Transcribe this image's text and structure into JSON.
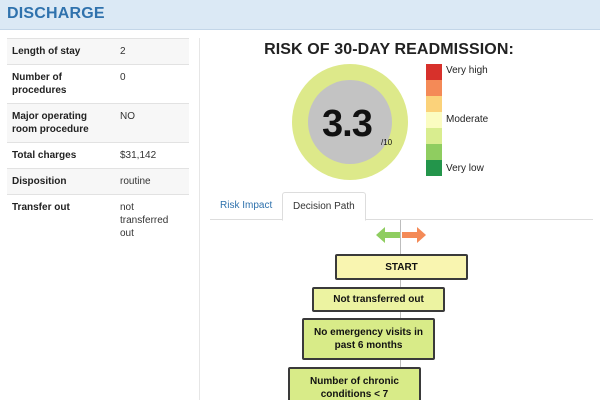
{
  "header": {
    "title": "DISCHARGE"
  },
  "stats": [
    {
      "key": "Length of stay",
      "value": "2"
    },
    {
      "key": "Number of procedures",
      "value": "0"
    },
    {
      "key": "Major operating room procedure",
      "value": "NO"
    },
    {
      "key": "Total charges",
      "value": "$31,142"
    },
    {
      "key": "Disposition",
      "value": "routine"
    },
    {
      "key": "Transfer out",
      "value": "not transferred out"
    }
  ],
  "risk": {
    "title": "RISK OF 30-DAY READMISSION:",
    "score": "3.3",
    "score_suffix": "/10",
    "gauge_ring_color": "#dde98a",
    "gauge_center_color": "#c3c3c3"
  },
  "legend": {
    "swatches": [
      "#d7312b",
      "#f48a57",
      "#fbd27a",
      "#fbfcc1",
      "#d9ed8f",
      "#8fcd60",
      "#23954b"
    ],
    "labels": {
      "high": "Very high",
      "moderate": "Moderate",
      "low": "Very low"
    }
  },
  "tabs": [
    {
      "label": "Risk Impact",
      "active": false
    },
    {
      "label": "Decision Path",
      "active": true
    }
  ],
  "decision_path": {
    "arrow_left_color": "#8fcd60",
    "arrow_right_color": "#f48a57",
    "nodes": [
      "START",
      "Not transferred out",
      "No emergency visits in past 6 months",
      "Number of chronic conditions < 7"
    ]
  }
}
